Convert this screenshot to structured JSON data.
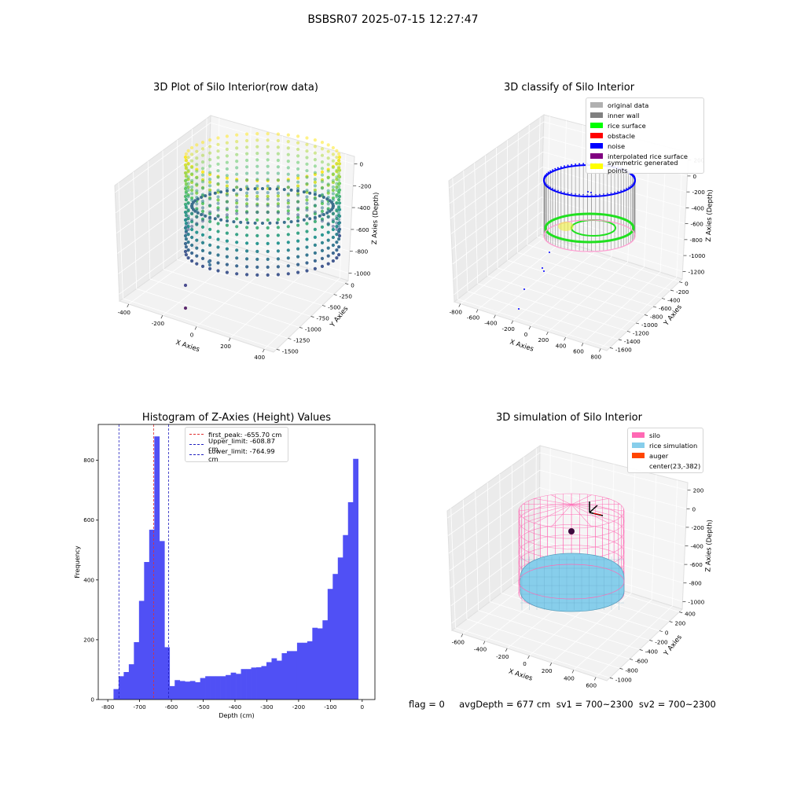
{
  "figure": {
    "title": "BSBSR07 2025-07-15 12:27:47"
  },
  "status": {
    "text": "flag = 0     avgDepth = 677 cm  sv1 = 700~2300  sv2 = 700~2300"
  },
  "colors": {
    "hist_bar": "#5050f5",
    "peak_line": "#e03030",
    "limit_line": "#2020c0",
    "silo": "#ff69b4",
    "rice": "#87ceeb",
    "auger": "#ff4500"
  },
  "chart_data": [
    {
      "type": "scatter",
      "title": "3D Plot of Silo Interior(row data)",
      "xlabel": "X Axies",
      "ylabel": "Y Axies",
      "zlabel": "Z Axies (Depth)",
      "x_ticks": [
        "-400",
        "-200",
        "0",
        "200",
        "400"
      ],
      "y_ticks": [
        "0",
        "-250",
        "-500",
        "-750",
        "-1000",
        "-1250",
        "-1500"
      ],
      "z_ticks": [
        "0",
        "-200",
        "-400",
        "-600",
        "-800",
        "-1000"
      ],
      "colormap": "viridis"
    },
    {
      "type": "scatter",
      "title": "3D classify of Silo Interior",
      "xlabel": "X Axies",
      "ylabel": "Y Axies",
      "zlabel": "Z Axies (Depth)",
      "x_ticks": [
        "-800",
        "-600",
        "-400",
        "-200",
        "0",
        "200",
        "400",
        "600",
        "800"
      ],
      "y_ticks": [
        "0",
        "-200",
        "-400",
        "-600",
        "-800",
        "-1000",
        "-1200",
        "-1400",
        "-1600"
      ],
      "z_ticks": [
        "200",
        "0",
        "-200",
        "-400",
        "-600",
        "-800",
        "-1000",
        "-1200"
      ],
      "legend": [
        {
          "label": "original data",
          "color": "#b0b0b0"
        },
        {
          "label": "inner wall",
          "color": "#808080"
        },
        {
          "label": "rice surface",
          "color": "#00ff00"
        },
        {
          "label": "obstacle",
          "color": "#ff0000"
        },
        {
          "label": "noise",
          "color": "#0000ff"
        },
        {
          "label": "interpolated rice surface",
          "color": "#800080"
        },
        {
          "label": "symmetric generated points",
          "color": "#ffff00"
        }
      ]
    },
    {
      "type": "bar",
      "title": "Histogram of Z-Axies (Height) Values",
      "xlabel": "Depth (cm)",
      "ylabel": "Frequency",
      "xlim": [
        -830,
        40
      ],
      "ylim": [
        0,
        920
      ],
      "x_ticks": [
        -800,
        -700,
        -600,
        -500,
        -400,
        -300,
        -200,
        -100,
        0
      ],
      "y_ticks": [
        0,
        200,
        400,
        600,
        800
      ],
      "bin_start": -782,
      "bin_width": 16.03,
      "values": [
        35,
        78,
        92,
        118,
        192,
        330,
        460,
        568,
        880,
        530,
        175,
        45,
        65,
        62,
        60,
        62,
        58,
        72,
        78,
        78,
        78,
        78,
        82,
        90,
        86,
        102,
        102,
        107,
        108,
        112,
        125,
        138,
        130,
        155,
        162,
        162,
        190,
        190,
        195,
        240,
        238,
        265,
        370,
        420,
        475,
        550,
        660,
        805
      ],
      "vlines": [
        {
          "label": "first_peak: -655.70 cm",
          "x": -655.7,
          "kind": "peak"
        },
        {
          "label": "Upper_limit: -608.87 cm",
          "x": -608.87,
          "kind": "limit"
        },
        {
          "label": "Lower_limit: -764.99 cm",
          "x": -764.99,
          "kind": "limit"
        }
      ]
    },
    {
      "type": "scatter",
      "title": "3D simulation of Silo Interior",
      "xlabel": "X Axies",
      "ylabel": "Y Axies",
      "zlabel": "Z Axies (Depth)",
      "x_ticks": [
        "-600",
        "-400",
        "-200",
        "0",
        "200",
        "400",
        "600"
      ],
      "y_ticks": [
        "400",
        "200",
        "0",
        "-200",
        "-400",
        "-600",
        "-800",
        "-1000"
      ],
      "z_ticks": [
        "200",
        "0",
        "-200",
        "-400",
        "-600",
        "-800",
        "-1000"
      ],
      "legend": [
        {
          "label": "silo",
          "color": "#ff69b4"
        },
        {
          "label": "rice simulation",
          "color": "#87ceeb"
        },
        {
          "label": "auger",
          "color": "#ff4500"
        },
        {
          "label": "center(23,-382)",
          "color": ""
        }
      ]
    }
  ]
}
